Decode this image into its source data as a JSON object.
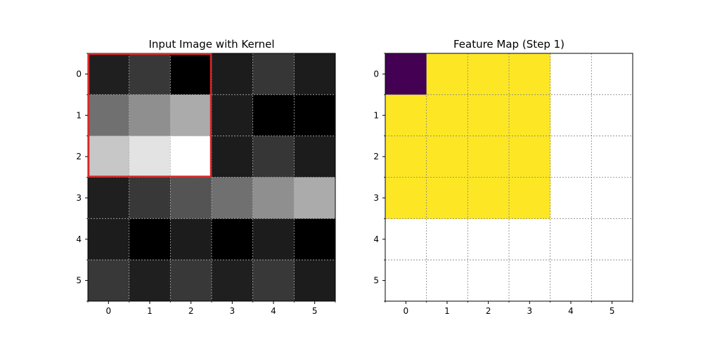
{
  "chart_data": [
    {
      "type": "heatmap",
      "title": "Input Image with Kernel",
      "xlabel": "",
      "ylabel": "",
      "colormap": "gray",
      "x_ticks": [
        "0",
        "1",
        "2",
        "3",
        "4",
        "5"
      ],
      "y_ticks": [
        "0",
        "1",
        "2",
        "3",
        "4",
        "5"
      ],
      "grid": true,
      "grid_color": "#b0b0b0",
      "values": [
        [
          0.12,
          0.22,
          0.0,
          0.11,
          0.21,
          0.11
        ],
        [
          0.44,
          0.56,
          0.67,
          0.11,
          0.0,
          0.0
        ],
        [
          0.78,
          0.89,
          1.0,
          0.11,
          0.21,
          0.11
        ],
        [
          0.12,
          0.22,
          0.33,
          0.44,
          0.56,
          0.67
        ],
        [
          0.11,
          0.0,
          0.11,
          0.0,
          0.11,
          0.0
        ],
        [
          0.22,
          0.12,
          0.22,
          0.12,
          0.22,
          0.11
        ]
      ],
      "kernel": {
        "row": 0,
        "col": 0,
        "size": 3,
        "color": "#d62728"
      }
    },
    {
      "type": "heatmap",
      "title": "Feature Map (Step 1)",
      "xlabel": "",
      "ylabel": "",
      "colormap": "viridis",
      "x_ticks": [
        "0",
        "1",
        "2",
        "3",
        "4",
        "5"
      ],
      "y_ticks": [
        "0",
        "1",
        "2",
        "3",
        "4",
        "5"
      ],
      "grid": true,
      "grid_color": "#808080",
      "low_color": "#440154",
      "high_color": "#fde725",
      "values": [
        [
          0,
          1,
          1,
          1,
          null,
          null
        ],
        [
          1,
          1,
          1,
          1,
          null,
          null
        ],
        [
          1,
          1,
          1,
          1,
          null,
          null
        ],
        [
          1,
          1,
          1,
          1,
          null,
          null
        ],
        [
          null,
          null,
          null,
          null,
          null,
          null
        ],
        [
          null,
          null,
          null,
          null,
          null,
          null
        ]
      ]
    }
  ]
}
